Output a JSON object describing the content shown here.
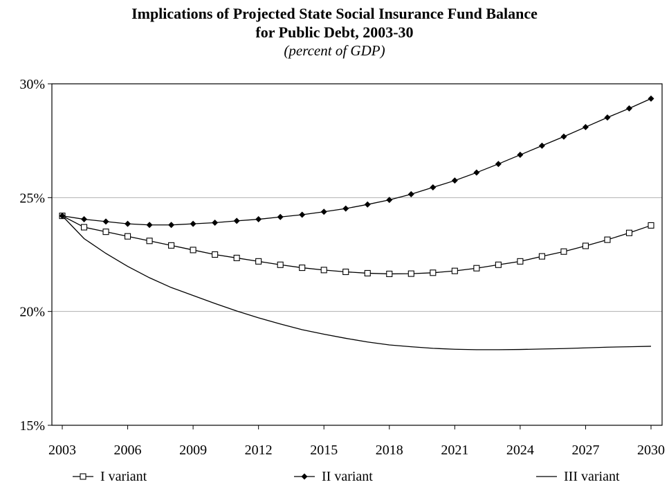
{
  "chart_data": {
    "type": "line",
    "title": "Implications of Projected State Social Insurance Fund Balance",
    "title_line2": "for Public Debt, 2003-30",
    "subtitle": "(percent of GDP)",
    "xlabel": "",
    "ylabel": "",
    "x": [
      2003,
      2004,
      2005,
      2006,
      2007,
      2008,
      2009,
      2010,
      2011,
      2012,
      2013,
      2014,
      2015,
      2016,
      2017,
      2018,
      2019,
      2020,
      2021,
      2022,
      2023,
      2024,
      2025,
      2026,
      2027,
      2028,
      2029,
      2030
    ],
    "x_ticks": [
      "2003",
      "2006",
      "2009",
      "2012",
      "2015",
      "2018",
      "2021",
      "2024",
      "2027",
      "2030"
    ],
    "y_ticks": [
      "15%",
      "20%",
      "25%",
      "30%"
    ],
    "ylim": [
      15,
      30
    ],
    "grid": "horizontal",
    "legend_position": "bottom",
    "series": [
      {
        "name": "I variant",
        "marker": "open-square",
        "color": "#000000",
        "values": [
          24.2,
          23.7,
          23.5,
          23.3,
          23.1,
          22.9,
          22.7,
          22.5,
          22.35,
          22.2,
          22.05,
          21.92,
          21.82,
          21.74,
          21.68,
          21.65,
          21.66,
          21.7,
          21.78,
          21.9,
          22.05,
          22.2,
          22.42,
          22.63,
          22.88,
          23.15,
          23.45,
          23.78
        ]
      },
      {
        "name": "II variant",
        "marker": "filled-diamond",
        "color": "#000000",
        "values": [
          24.2,
          24.05,
          23.95,
          23.85,
          23.8,
          23.8,
          23.85,
          23.9,
          23.98,
          24.05,
          24.15,
          24.25,
          24.38,
          24.52,
          24.7,
          24.9,
          25.15,
          25.45,
          25.75,
          26.1,
          26.48,
          26.88,
          27.28,
          27.68,
          28.1,
          28.52,
          28.92,
          29.35
        ]
      },
      {
        "name": "III variant",
        "marker": "none",
        "color": "#000000",
        "values": [
          24.2,
          23.2,
          22.55,
          21.98,
          21.48,
          21.05,
          20.7,
          20.35,
          20.02,
          19.72,
          19.45,
          19.2,
          19.0,
          18.82,
          18.66,
          18.53,
          18.45,
          18.38,
          18.34,
          18.32,
          18.32,
          18.33,
          18.35,
          18.37,
          18.4,
          18.43,
          18.45,
          18.47
        ]
      }
    ]
  }
}
